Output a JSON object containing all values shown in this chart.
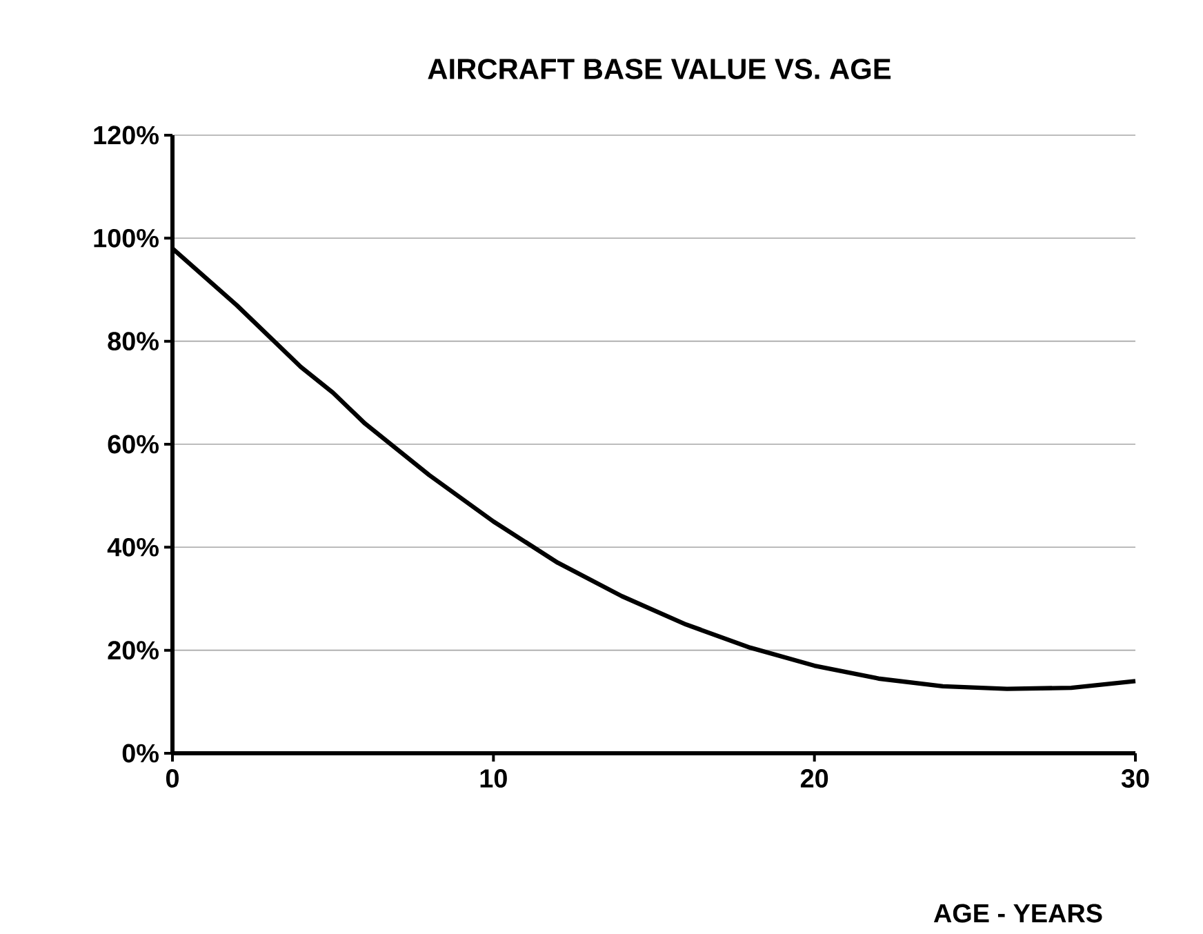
{
  "chart_data": {
    "type": "line",
    "title": "AIRCRAFT BASE VALUE VS. AGE",
    "xlabel": "AGE - YEARS",
    "x": [
      0,
      2,
      4,
      5,
      6,
      8,
      10,
      12,
      14,
      16,
      18,
      20,
      22,
      24,
      26,
      28,
      30
    ],
    "series": [
      {
        "color": "#000000",
        "values": [
          98,
          87,
          75,
          70,
          64,
          54,
          45,
          37,
          30.5,
          25,
          20.5,
          17,
          14.5,
          13,
          12.5,
          12.7,
          14
        ]
      }
    ],
    "xlim": [
      0,
      30
    ],
    "xticks": [
      0,
      10,
      20,
      30
    ],
    "ylim": [
      0,
      120
    ],
    "yticks": [
      {
        "value": 0,
        "label": "0%"
      },
      {
        "value": 20,
        "label": "20%"
      },
      {
        "value": 40,
        "label": "40%"
      },
      {
        "value": 60,
        "label": "60%"
      },
      {
        "value": 80,
        "label": "80%"
      },
      {
        "value": 100,
        "label": "100%"
      },
      {
        "value": 120,
        "label": "120%"
      }
    ],
    "grid": "y"
  }
}
